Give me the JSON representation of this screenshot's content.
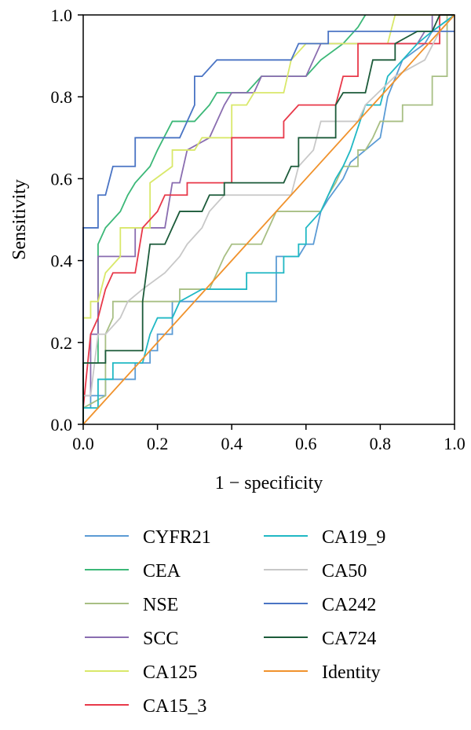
{
  "chart_data": {
    "type": "line",
    "xlabel": "1 − specificity",
    "ylabel": "Sensitivity",
    "xlim": [
      0,
      1
    ],
    "ylim": [
      0,
      1
    ],
    "xticks": [
      "0.0",
      "0.2",
      "0.4",
      "0.6",
      "0.8",
      "1.0"
    ],
    "yticks": [
      "0.0",
      "0.2",
      "0.4",
      "0.6",
      "0.8",
      "1.0"
    ],
    "legend_position": "below",
    "series": [
      {
        "name": "CYFR21",
        "color": "#5b9bd5",
        "points": [
          [
            0,
            0
          ],
          [
            0,
            0.04
          ],
          [
            0.02,
            0.04
          ],
          [
            0.02,
            0.07
          ],
          [
            0.06,
            0.07
          ],
          [
            0.06,
            0.11
          ],
          [
            0.14,
            0.11
          ],
          [
            0.14,
            0.15
          ],
          [
            0.18,
            0.15
          ],
          [
            0.18,
            0.18
          ],
          [
            0.2,
            0.18
          ],
          [
            0.2,
            0.22
          ],
          [
            0.24,
            0.22
          ],
          [
            0.24,
            0.3
          ],
          [
            0.52,
            0.3
          ],
          [
            0.52,
            0.41
          ],
          [
            0.58,
            0.41
          ],
          [
            0.6,
            0.44
          ],
          [
            0.62,
            0.44
          ],
          [
            0.64,
            0.52
          ],
          [
            0.66,
            0.55
          ],
          [
            0.7,
            0.6
          ],
          [
            0.72,
            0.64
          ],
          [
            0.76,
            0.67
          ],
          [
            0.8,
            0.7
          ],
          [
            0.82,
            0.8
          ],
          [
            0.86,
            0.89
          ],
          [
            0.92,
            0.93
          ],
          [
            0.94,
            0.96
          ],
          [
            1,
            1
          ]
        ]
      },
      {
        "name": "CEA",
        "color": "#3cb878",
        "points": [
          [
            0,
            0
          ],
          [
            0,
            0.15
          ],
          [
            0.04,
            0.15
          ],
          [
            0.04,
            0.44
          ],
          [
            0.06,
            0.48
          ],
          [
            0.1,
            0.52
          ],
          [
            0.12,
            0.56
          ],
          [
            0.14,
            0.59
          ],
          [
            0.18,
            0.63
          ],
          [
            0.2,
            0.67
          ],
          [
            0.24,
            0.74
          ],
          [
            0.3,
            0.74
          ],
          [
            0.34,
            0.78
          ],
          [
            0.36,
            0.81
          ],
          [
            0.44,
            0.81
          ],
          [
            0.48,
            0.85
          ],
          [
            0.6,
            0.85
          ],
          [
            0.64,
            0.89
          ],
          [
            0.7,
            0.93
          ],
          [
            0.74,
            0.97
          ],
          [
            0.76,
            1
          ]
        ]
      },
      {
        "name": "NSE",
        "color": "#a8bf84",
        "points": [
          [
            0,
            0
          ],
          [
            0,
            0.04
          ],
          [
            0.06,
            0.07
          ],
          [
            0.06,
            0.22
          ],
          [
            0.08,
            0.26
          ],
          [
            0.08,
            0.3
          ],
          [
            0.26,
            0.3
          ],
          [
            0.26,
            0.33
          ],
          [
            0.34,
            0.33
          ],
          [
            0.36,
            0.37
          ],
          [
            0.38,
            0.41
          ],
          [
            0.4,
            0.44
          ],
          [
            0.48,
            0.44
          ],
          [
            0.5,
            0.48
          ],
          [
            0.52,
            0.52
          ],
          [
            0.64,
            0.52
          ],
          [
            0.66,
            0.56
          ],
          [
            0.68,
            0.59
          ],
          [
            0.7,
            0.63
          ],
          [
            0.74,
            0.63
          ],
          [
            0.74,
            0.67
          ],
          [
            0.76,
            0.67
          ],
          [
            0.78,
            0.7
          ],
          [
            0.8,
            0.74
          ],
          [
            0.86,
            0.74
          ],
          [
            0.86,
            0.78
          ],
          [
            0.94,
            0.78
          ],
          [
            0.94,
            0.85
          ],
          [
            0.98,
            0.85
          ],
          [
            0.98,
            1
          ],
          [
            1,
            1
          ]
        ]
      },
      {
        "name": "SCC",
        "color": "#8a6db0",
        "points": [
          [
            0,
            0
          ],
          [
            0,
            0.07
          ],
          [
            0.02,
            0.07
          ],
          [
            0.02,
            0.22
          ],
          [
            0.04,
            0.22
          ],
          [
            0.04,
            0.41
          ],
          [
            0.14,
            0.41
          ],
          [
            0.14,
            0.48
          ],
          [
            0.22,
            0.48
          ],
          [
            0.24,
            0.59
          ],
          [
            0.26,
            0.59
          ],
          [
            0.28,
            0.67
          ],
          [
            0.34,
            0.7
          ],
          [
            0.36,
            0.74
          ],
          [
            0.38,
            0.78
          ],
          [
            0.4,
            0.81
          ],
          [
            0.46,
            0.81
          ],
          [
            0.48,
            0.85
          ],
          [
            0.6,
            0.85
          ],
          [
            0.62,
            0.89
          ],
          [
            0.64,
            0.93
          ],
          [
            0.9,
            0.93
          ],
          [
            0.92,
            0.96
          ],
          [
            0.94,
            0.96
          ],
          [
            0.94,
            1
          ],
          [
            1,
            1
          ]
        ]
      },
      {
        "name": "CA125",
        "color": "#d9e86a",
        "points": [
          [
            0,
            0
          ],
          [
            0,
            0.26
          ],
          [
            0.02,
            0.26
          ],
          [
            0.02,
            0.3
          ],
          [
            0.04,
            0.3
          ],
          [
            0.06,
            0.37
          ],
          [
            0.1,
            0.41
          ],
          [
            0.1,
            0.48
          ],
          [
            0.18,
            0.48
          ],
          [
            0.18,
            0.59
          ],
          [
            0.24,
            0.63
          ],
          [
            0.24,
            0.67
          ],
          [
            0.3,
            0.67
          ],
          [
            0.32,
            0.7
          ],
          [
            0.4,
            0.7
          ],
          [
            0.4,
            0.78
          ],
          [
            0.44,
            0.78
          ],
          [
            0.46,
            0.81
          ],
          [
            0.54,
            0.81
          ],
          [
            0.56,
            0.89
          ],
          [
            0.6,
            0.93
          ],
          [
            0.82,
            0.93
          ],
          [
            0.84,
            1
          ],
          [
            1,
            1
          ]
        ]
      },
      {
        "name": "CA15_3",
        "color": "#e8394a",
        "points": [
          [
            0,
            0
          ],
          [
            0,
            0.04
          ],
          [
            0.02,
            0.22
          ],
          [
            0.04,
            0.26
          ],
          [
            0.06,
            0.33
          ],
          [
            0.08,
            0.37
          ],
          [
            0.14,
            0.37
          ],
          [
            0.16,
            0.48
          ],
          [
            0.2,
            0.52
          ],
          [
            0.22,
            0.56
          ],
          [
            0.28,
            0.56
          ],
          [
            0.28,
            0.59
          ],
          [
            0.4,
            0.59
          ],
          [
            0.4,
            0.7
          ],
          [
            0.54,
            0.7
          ],
          [
            0.54,
            0.74
          ],
          [
            0.58,
            0.78
          ],
          [
            0.68,
            0.78
          ],
          [
            0.7,
            0.85
          ],
          [
            0.74,
            0.85
          ],
          [
            0.74,
            0.93
          ],
          [
            0.96,
            0.93
          ],
          [
            0.96,
            1
          ],
          [
            1,
            1
          ]
        ]
      },
      {
        "name": "CA19_9",
        "color": "#20b8c4",
        "points": [
          [
            0,
            0
          ],
          [
            0,
            0.04
          ],
          [
            0.04,
            0.04
          ],
          [
            0.04,
            0.11
          ],
          [
            0.08,
            0.11
          ],
          [
            0.08,
            0.15
          ],
          [
            0.16,
            0.15
          ],
          [
            0.18,
            0.22
          ],
          [
            0.2,
            0.26
          ],
          [
            0.24,
            0.26
          ],
          [
            0.26,
            0.3
          ],
          [
            0.32,
            0.33
          ],
          [
            0.44,
            0.33
          ],
          [
            0.44,
            0.37
          ],
          [
            0.54,
            0.37
          ],
          [
            0.54,
            0.41
          ],
          [
            0.58,
            0.41
          ],
          [
            0.58,
            0.44
          ],
          [
            0.6,
            0.44
          ],
          [
            0.6,
            0.48
          ],
          [
            0.64,
            0.52
          ],
          [
            0.68,
            0.6
          ],
          [
            0.7,
            0.63
          ],
          [
            0.72,
            0.67
          ],
          [
            0.76,
            0.78
          ],
          [
            0.8,
            0.78
          ],
          [
            0.82,
            0.85
          ],
          [
            0.86,
            0.89
          ],
          [
            0.9,
            0.93
          ],
          [
            0.94,
            0.96
          ],
          [
            1,
            1
          ]
        ]
      },
      {
        "name": "CA50",
        "color": "#c8c8c8",
        "points": [
          [
            0,
            0
          ],
          [
            0,
            0.07
          ],
          [
            0.02,
            0.07
          ],
          [
            0.04,
            0.22
          ],
          [
            0.06,
            0.22
          ],
          [
            0.1,
            0.26
          ],
          [
            0.12,
            0.3
          ],
          [
            0.16,
            0.33
          ],
          [
            0.22,
            0.37
          ],
          [
            0.26,
            0.41
          ],
          [
            0.28,
            0.44
          ],
          [
            0.32,
            0.48
          ],
          [
            0.34,
            0.52
          ],
          [
            0.38,
            0.56
          ],
          [
            0.56,
            0.56
          ],
          [
            0.58,
            0.63
          ],
          [
            0.62,
            0.67
          ],
          [
            0.64,
            0.74
          ],
          [
            0.74,
            0.74
          ],
          [
            0.76,
            0.78
          ],
          [
            0.84,
            0.85
          ],
          [
            0.92,
            0.89
          ],
          [
            0.96,
            0.96
          ],
          [
            1,
            1
          ]
        ]
      },
      {
        "name": "CA242",
        "color": "#4a74c4",
        "points": [
          [
            0,
            0
          ],
          [
            0,
            0.48
          ],
          [
            0.04,
            0.48
          ],
          [
            0.04,
            0.56
          ],
          [
            0.06,
            0.56
          ],
          [
            0.08,
            0.63
          ],
          [
            0.14,
            0.63
          ],
          [
            0.14,
            0.7
          ],
          [
            0.26,
            0.7
          ],
          [
            0.28,
            0.74
          ],
          [
            0.3,
            0.78
          ],
          [
            0.3,
            0.85
          ],
          [
            0.32,
            0.85
          ],
          [
            0.36,
            0.89
          ],
          [
            0.56,
            0.89
          ],
          [
            0.58,
            0.93
          ],
          [
            0.66,
            0.93
          ],
          [
            0.66,
            0.96
          ],
          [
            1,
            0.96
          ]
        ]
      },
      {
        "name": "CA724",
        "color": "#1c5b3a",
        "points": [
          [
            0,
            0
          ],
          [
            0,
            0.15
          ],
          [
            0.06,
            0.15
          ],
          [
            0.06,
            0.18
          ],
          [
            0.16,
            0.18
          ],
          [
            0.16,
            0.3
          ],
          [
            0.18,
            0.44
          ],
          [
            0.22,
            0.44
          ],
          [
            0.24,
            0.48
          ],
          [
            0.26,
            0.52
          ],
          [
            0.32,
            0.52
          ],
          [
            0.34,
            0.56
          ],
          [
            0.38,
            0.56
          ],
          [
            0.38,
            0.59
          ],
          [
            0.54,
            0.59
          ],
          [
            0.56,
            0.63
          ],
          [
            0.58,
            0.63
          ],
          [
            0.58,
            0.7
          ],
          [
            0.68,
            0.7
          ],
          [
            0.68,
            0.78
          ],
          [
            0.7,
            0.81
          ],
          [
            0.76,
            0.81
          ],
          [
            0.78,
            0.89
          ],
          [
            0.84,
            0.89
          ],
          [
            0.84,
            0.93
          ],
          [
            0.9,
            0.96
          ],
          [
            0.94,
            0.96
          ],
          [
            0.96,
            1
          ],
          [
            1,
            1
          ]
        ]
      },
      {
        "name": "Identity",
        "color": "#f0922c",
        "points": [
          [
            0,
            0
          ],
          [
            1,
            1
          ]
        ]
      }
    ]
  }
}
